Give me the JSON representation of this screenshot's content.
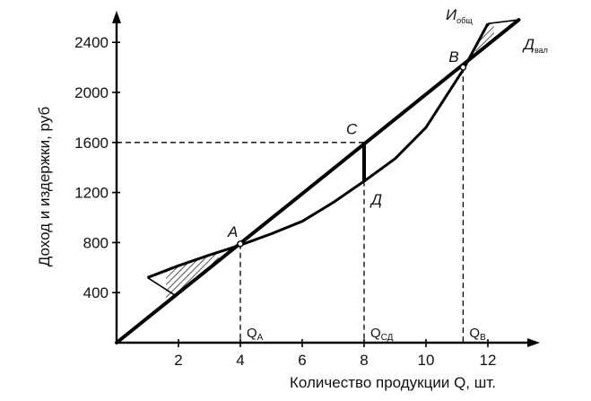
{
  "chart_data": {
    "type": "line",
    "xlabel": "Количество продукции Q, шт.",
    "ylabel": "Доход и издержки, руб",
    "x_ticks": [
      "2",
      "4",
      "6",
      "8",
      "10",
      "12"
    ],
    "y_ticks": [
      "400",
      "800",
      "1200",
      "1600",
      "2000",
      "2400"
    ],
    "xlim": [
      0,
      13.2
    ],
    "ylim": [
      0,
      2550
    ],
    "series": [
      {
        "name": "Д",
        "name_sub": "вал",
        "kind": "revenue",
        "color": "#000000",
        "x": [
          0,
          13
        ],
        "y": [
          0,
          2580
        ]
      },
      {
        "name": "И",
        "name_sub": "общ",
        "kind": "costs",
        "color": "#000000",
        "x": [
          1,
          2,
          3,
          4,
          5,
          6,
          7,
          8,
          9,
          10,
          11.2,
          12
        ],
        "y": [
          520,
          615,
          700,
          780,
          870,
          970,
          1120,
          1290,
          1470,
          1720,
          2180,
          2550
        ]
      }
    ],
    "points": [
      {
        "label": "A",
        "x": 4,
        "y": 790
      },
      {
        "label": "C",
        "x": 8,
        "y": 1580
      },
      {
        "label": "Д",
        "x": 8,
        "y": 1290
      },
      {
        "label": "B",
        "x": 11.2,
        "y": 2200
      }
    ],
    "q_markers": [
      {
        "label": "Q",
        "sub": "А",
        "x": 4
      },
      {
        "label": "Q",
        "sub": "СД",
        "x": 8
      },
      {
        "label": "Q",
        "sub": "В",
        "x": 11.2
      }
    ],
    "h_guide": {
      "y": 1600,
      "x_to": 8
    },
    "grid": false,
    "legend": "none"
  }
}
